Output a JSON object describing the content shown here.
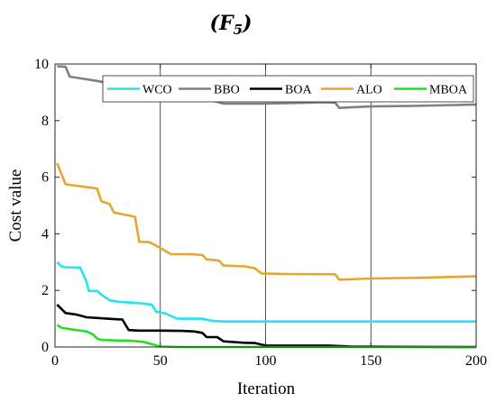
{
  "chart_data": {
    "type": "line",
    "title": "F",
    "title_subscript": "5",
    "xlabel": "Iteration",
    "ylabel": "Cost value",
    "xlim": [
      0,
      200
    ],
    "ylim": [
      0,
      10
    ],
    "xticks": [
      0,
      50,
      100,
      150,
      200
    ],
    "yticks": [
      0,
      2,
      4,
      6,
      8,
      10
    ],
    "grid": "vertical only",
    "legend_placement": "top-right, horizontal",
    "series": [
      {
        "name": "WCO",
        "color": "#22e5f0",
        "points": [
          [
            1,
            3.0
          ],
          [
            3,
            2.85
          ],
          [
            5,
            2.82
          ],
          [
            12,
            2.8
          ],
          [
            15,
            2.3
          ],
          [
            16,
            1.98
          ],
          [
            20,
            1.98
          ],
          [
            22,
            1.85
          ],
          [
            26,
            1.65
          ],
          [
            30,
            1.6
          ],
          [
            40,
            1.55
          ],
          [
            46,
            1.5
          ],
          [
            48,
            1.25
          ],
          [
            52,
            1.2
          ],
          [
            55,
            1.1
          ],
          [
            58,
            1.0
          ],
          [
            70,
            1.0
          ],
          [
            75,
            0.92
          ],
          [
            80,
            0.9
          ],
          [
            100,
            0.9
          ],
          [
            150,
            0.9
          ],
          [
            200,
            0.9
          ]
        ]
      },
      {
        "name": "BBO",
        "color": "#808080",
        "points": [
          [
            1,
            9.92
          ],
          [
            5,
            9.9
          ],
          [
            7,
            9.55
          ],
          [
            10,
            9.52
          ],
          [
            20,
            9.4
          ],
          [
            30,
            9.25
          ],
          [
            40,
            9.1
          ],
          [
            50,
            8.98
          ],
          [
            60,
            8.85
          ],
          [
            70,
            8.75
          ],
          [
            76,
            8.68
          ],
          [
            80,
            8.6
          ],
          [
            100,
            8.6
          ],
          [
            120,
            8.63
          ],
          [
            127,
            8.65
          ],
          [
            133,
            8.63
          ],
          [
            135,
            8.45
          ],
          [
            150,
            8.5
          ],
          [
            170,
            8.52
          ],
          [
            190,
            8.55
          ],
          [
            200,
            8.57
          ]
        ]
      },
      {
        "name": "BOA",
        "color": "#000000",
        "points": [
          [
            1,
            1.5
          ],
          [
            5,
            1.2
          ],
          [
            10,
            1.15
          ],
          [
            15,
            1.05
          ],
          [
            25,
            1.0
          ],
          [
            32,
            0.97
          ],
          [
            35,
            0.6
          ],
          [
            40,
            0.58
          ],
          [
            50,
            0.58
          ],
          [
            60,
            0.57
          ],
          [
            66,
            0.55
          ],
          [
            70,
            0.5
          ],
          [
            72,
            0.35
          ],
          [
            77,
            0.35
          ],
          [
            80,
            0.2
          ],
          [
            90,
            0.15
          ],
          [
            95,
            0.14
          ],
          [
            100,
            0.05
          ],
          [
            130,
            0.05
          ],
          [
            140,
            0.02
          ],
          [
            160,
            0.01
          ],
          [
            200,
            0.0
          ]
        ]
      },
      {
        "name": "ALO",
        "color": "#e5a82c",
        "points": [
          [
            1,
            6.5
          ],
          [
            5,
            5.75
          ],
          [
            10,
            5.7
          ],
          [
            20,
            5.6
          ],
          [
            22,
            5.15
          ],
          [
            26,
            5.05
          ],
          [
            28,
            4.75
          ],
          [
            35,
            4.65
          ],
          [
            38,
            4.6
          ],
          [
            40,
            3.72
          ],
          [
            45,
            3.7
          ],
          [
            50,
            3.5
          ],
          [
            55,
            3.28
          ],
          [
            65,
            3.28
          ],
          [
            70,
            3.25
          ],
          [
            72,
            3.1
          ],
          [
            78,
            3.05
          ],
          [
            80,
            2.88
          ],
          [
            90,
            2.85
          ],
          [
            95,
            2.78
          ],
          [
            98,
            2.6
          ],
          [
            110,
            2.58
          ],
          [
            133,
            2.57
          ],
          [
            135,
            2.38
          ],
          [
            150,
            2.42
          ],
          [
            175,
            2.45
          ],
          [
            200,
            2.5
          ]
        ]
      },
      {
        "name": "MBOA",
        "color": "#22e022",
        "points": [
          [
            1,
            0.78
          ],
          [
            3,
            0.68
          ],
          [
            8,
            0.62
          ],
          [
            15,
            0.55
          ],
          [
            18,
            0.45
          ],
          [
            20,
            0.3
          ],
          [
            22,
            0.25
          ],
          [
            30,
            0.23
          ],
          [
            36,
            0.22
          ],
          [
            42,
            0.18
          ],
          [
            46,
            0.1
          ],
          [
            50,
            0.02
          ],
          [
            60,
            0.0
          ],
          [
            200,
            0.0
          ]
        ]
      }
    ]
  }
}
